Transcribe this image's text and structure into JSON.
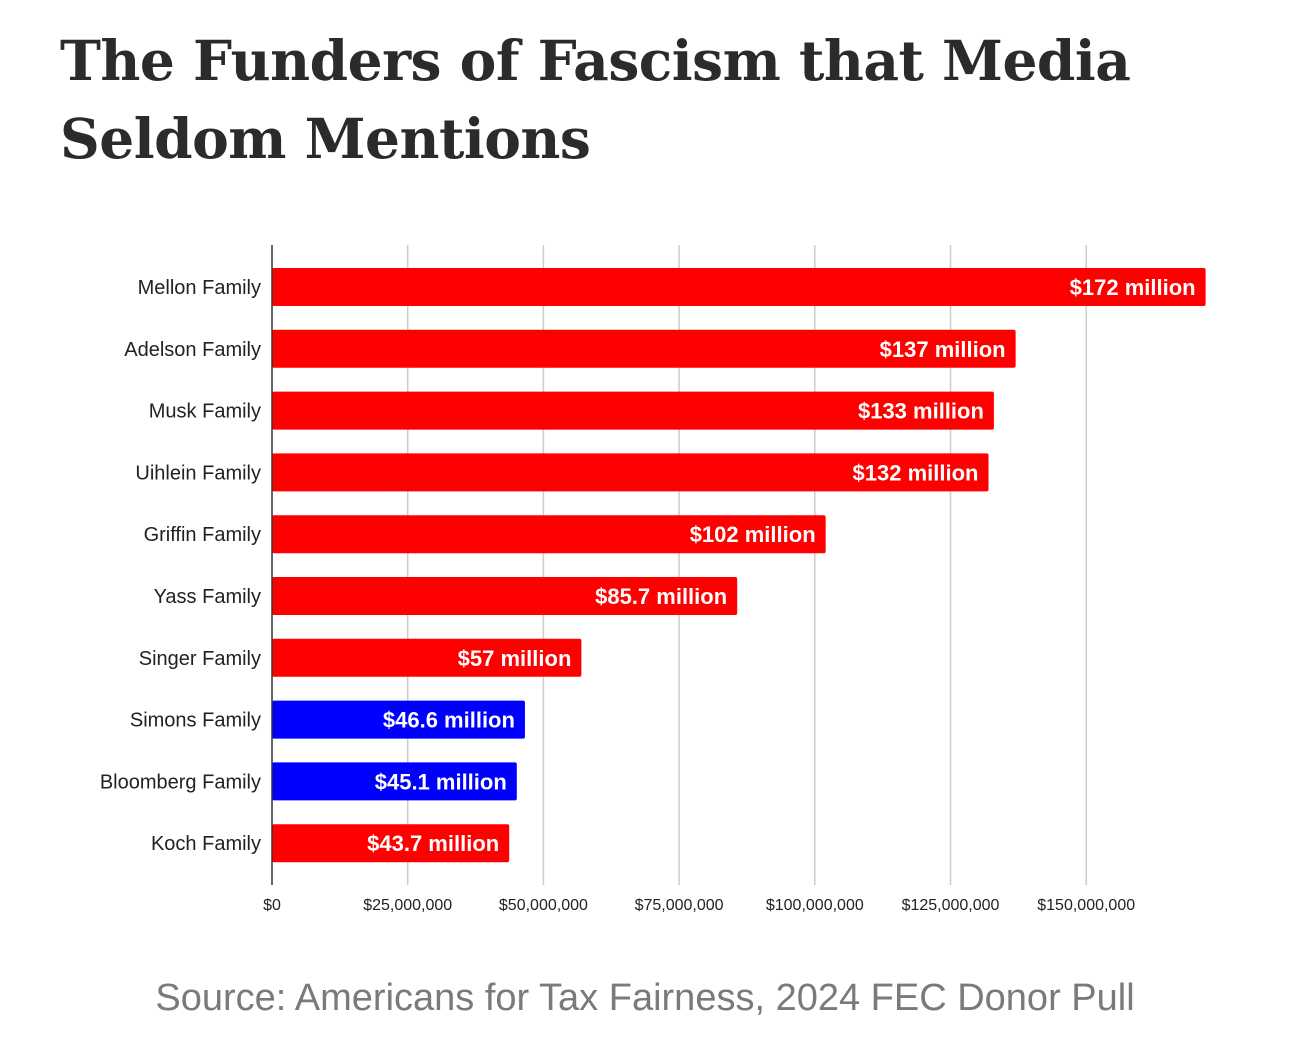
{
  "page": {
    "title": "The Funders of Fascism that Media Seldom Mentions",
    "source": "Source: Americans for Tax Fairness, 2024 FEC Donor Pull"
  },
  "colors": {
    "republican": "#ff0000",
    "democrat": "#0000ff",
    "gridline": "#cccccc",
    "axis": "#333333"
  },
  "chart_data": {
    "type": "bar",
    "orientation": "horizontal",
    "title": "",
    "xlabel": "",
    "ylabel": "",
    "xlim": [
      0,
      175000000
    ],
    "grid": true,
    "legend": "none",
    "categories": [
      "Mellon Family",
      "Adelson Family",
      "Musk Family",
      "Uihlein Family",
      "Griffin Family",
      "Yass Family",
      "Singer Family",
      "Simons Family",
      "Bloomberg Family",
      "Koch Family"
    ],
    "values": [
      172000000,
      137000000,
      133000000,
      132000000,
      102000000,
      85700000,
      57000000,
      46600000,
      45100000,
      43700000
    ],
    "value_labels": [
      "$172 million",
      "$137 million",
      "$133 million",
      "$132 million",
      "$102 million",
      "$85.7 million",
      "$57 million",
      "$46.6 million",
      "$45.1 million",
      "$43.7 million"
    ],
    "bar_colors": [
      "#ff0000",
      "#ff0000",
      "#ff0000",
      "#ff0000",
      "#ff0000",
      "#ff0000",
      "#ff0000",
      "#0000ff",
      "#0000ff",
      "#ff0000"
    ],
    "x_ticks": [
      0,
      25000000,
      50000000,
      75000000,
      100000000,
      125000000,
      150000000
    ],
    "x_tick_labels": [
      "$0",
      "$25,000,000",
      "$50,000,000",
      "$75,000,000",
      "$100,000,000",
      "$125,000,000",
      "$150,000,000"
    ]
  }
}
